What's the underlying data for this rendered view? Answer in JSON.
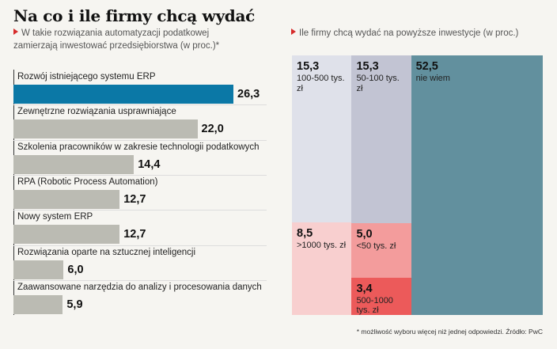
{
  "title": "Na co i ile  firmy chcą wydać",
  "subtitle_left": "W takie rozwiązania automatyzacji podatkowej zamierzają inwestować przedsiębiorstwa (w proc.)*",
  "subtitle_right": "Ile firmy chcą wydać na powyższe inwestycje (w proc.)",
  "footnote": "* możliwość wyboru więcej niż jednej odpowiedzi. Źródło: PwC",
  "colors": {
    "highlight": "#0b78a6",
    "bar": "#bbbbb3",
    "accent": "#d62b2b"
  },
  "chart_data": [
    {
      "type": "bar",
      "orientation": "horizontal",
      "categories": [
        "Rozwój istniejącego systemu ERP",
        "Zewnętrzne rozwiązania usprawniające",
        "Szkolenia pracowników w zakresie technologii podatkowych",
        "RPA (Robotic Process Automation)",
        "Nowy system ERP",
        "Rozwiązania oparte na sztucznej inteligencji",
        "Zaawansowane narzędzia do analizy i procesowania danych"
      ],
      "values": [
        26.3,
        22.0,
        14.4,
        12.7,
        12.7,
        6.0,
        5.9
      ],
      "value_labels": [
        "26,3",
        "22,0",
        "14,4",
        "12,7",
        "12,7",
        "6,0",
        "5,9"
      ],
      "highlight_index": 0
    },
    {
      "type": "mosaic",
      "cells": [
        {
          "value": 15.3,
          "value_label": "15,3",
          "label": "100-500 tys. zł",
          "color": "#dfe1ea"
        },
        {
          "value": 8.5,
          "value_label": "8,5",
          "label": ">1000 tys. zł",
          "color": "#f8cfcf"
        },
        {
          "value": 15.3,
          "value_label": "15,3",
          "label": "50-100 tys. zł",
          "color": "#c2c4d3"
        },
        {
          "value": 5.0,
          "value_label": "5,0",
          "label": "<50 tys. zł",
          "color": "#f39c9c"
        },
        {
          "value": 3.4,
          "value_label": "3,4",
          "label": "500-1000 tys. zł",
          "color": "#ec5a5a"
        },
        {
          "value": 52.5,
          "value_label": "52,5",
          "label": "nie wiem",
          "color": "#62909e"
        }
      ]
    }
  ]
}
